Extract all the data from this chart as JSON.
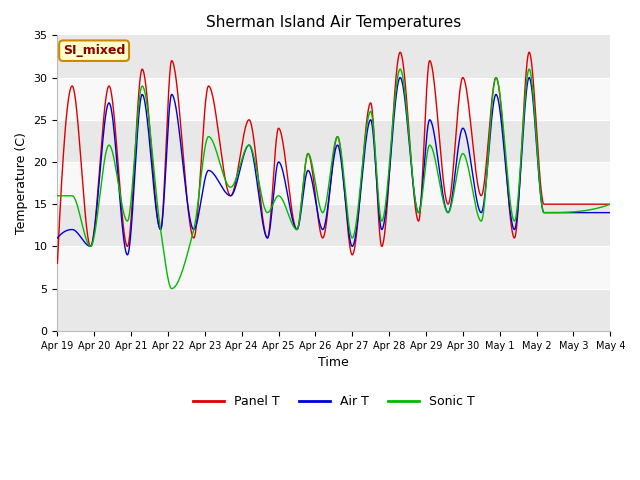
{
  "title": "Sherman Island Air Temperatures",
  "xlabel": "Time",
  "ylabel": "Temperature (C)",
  "ylim": [
    0,
    35
  ],
  "legend_labels": [
    "Panel T",
    "Air T",
    "Sonic T"
  ],
  "legend_colors": [
    "#dd0000",
    "#0000dd",
    "#00bb00"
  ],
  "annotation_text": "SI_mixed",
  "annotation_bg": "#ffffcc",
  "annotation_border": "#cc8800",
  "annotation_text_color": "#880000",
  "xtick_labels": [
    "Apr 19",
    "Apr 20",
    "Apr 21",
    "Apr 22",
    "Apr 23",
    "Apr 24",
    "Apr 25",
    "Apr 26",
    "Apr 27",
    "Apr 28",
    "Apr 29",
    "Apr 30",
    "May 1",
    "May 2",
    "May 3",
    "May 4"
  ],
  "band_colors": [
    "#e8e8e8",
    "#f8f8f8"
  ],
  "y_band_edges": [
    0,
    5,
    10,
    15,
    20,
    25,
    30,
    35
  ],
  "panel_peaks": [
    29,
    10,
    29,
    10,
    31,
    12,
    32,
    11,
    29,
    16,
    25,
    11,
    24,
    12,
    21,
    11,
    23,
    9,
    27,
    10,
    33,
    13,
    32,
    15,
    30,
    16,
    30,
    11,
    33,
    15
  ],
  "panel_times": [
    0.4,
    0.9,
    1.4,
    1.9,
    2.3,
    2.8,
    3.1,
    3.7,
    4.1,
    4.7,
    5.2,
    5.7,
    6.0,
    6.5,
    6.8,
    7.2,
    7.6,
    8.0,
    8.5,
    8.8,
    9.3,
    9.8,
    10.1,
    10.6,
    11.0,
    11.5,
    11.9,
    12.4,
    12.8,
    13.2
  ],
  "air_peaks": [
    12,
    10,
    27,
    9,
    28,
    12,
    28,
    12,
    19,
    16,
    22,
    11,
    20,
    12,
    19,
    12,
    22,
    10,
    25,
    12,
    30,
    14,
    25,
    14,
    24,
    14,
    28,
    12,
    30,
    14
  ],
  "sonic_peaks": [
    16,
    10,
    22,
    13,
    29,
    12,
    5,
    12,
    23,
    17,
    22,
    14,
    16,
    12,
    21,
    14,
    23,
    11,
    26,
    13,
    31,
    14,
    22,
    14,
    21,
    13,
    30,
    13,
    31,
    14
  ],
  "n_days": 15
}
